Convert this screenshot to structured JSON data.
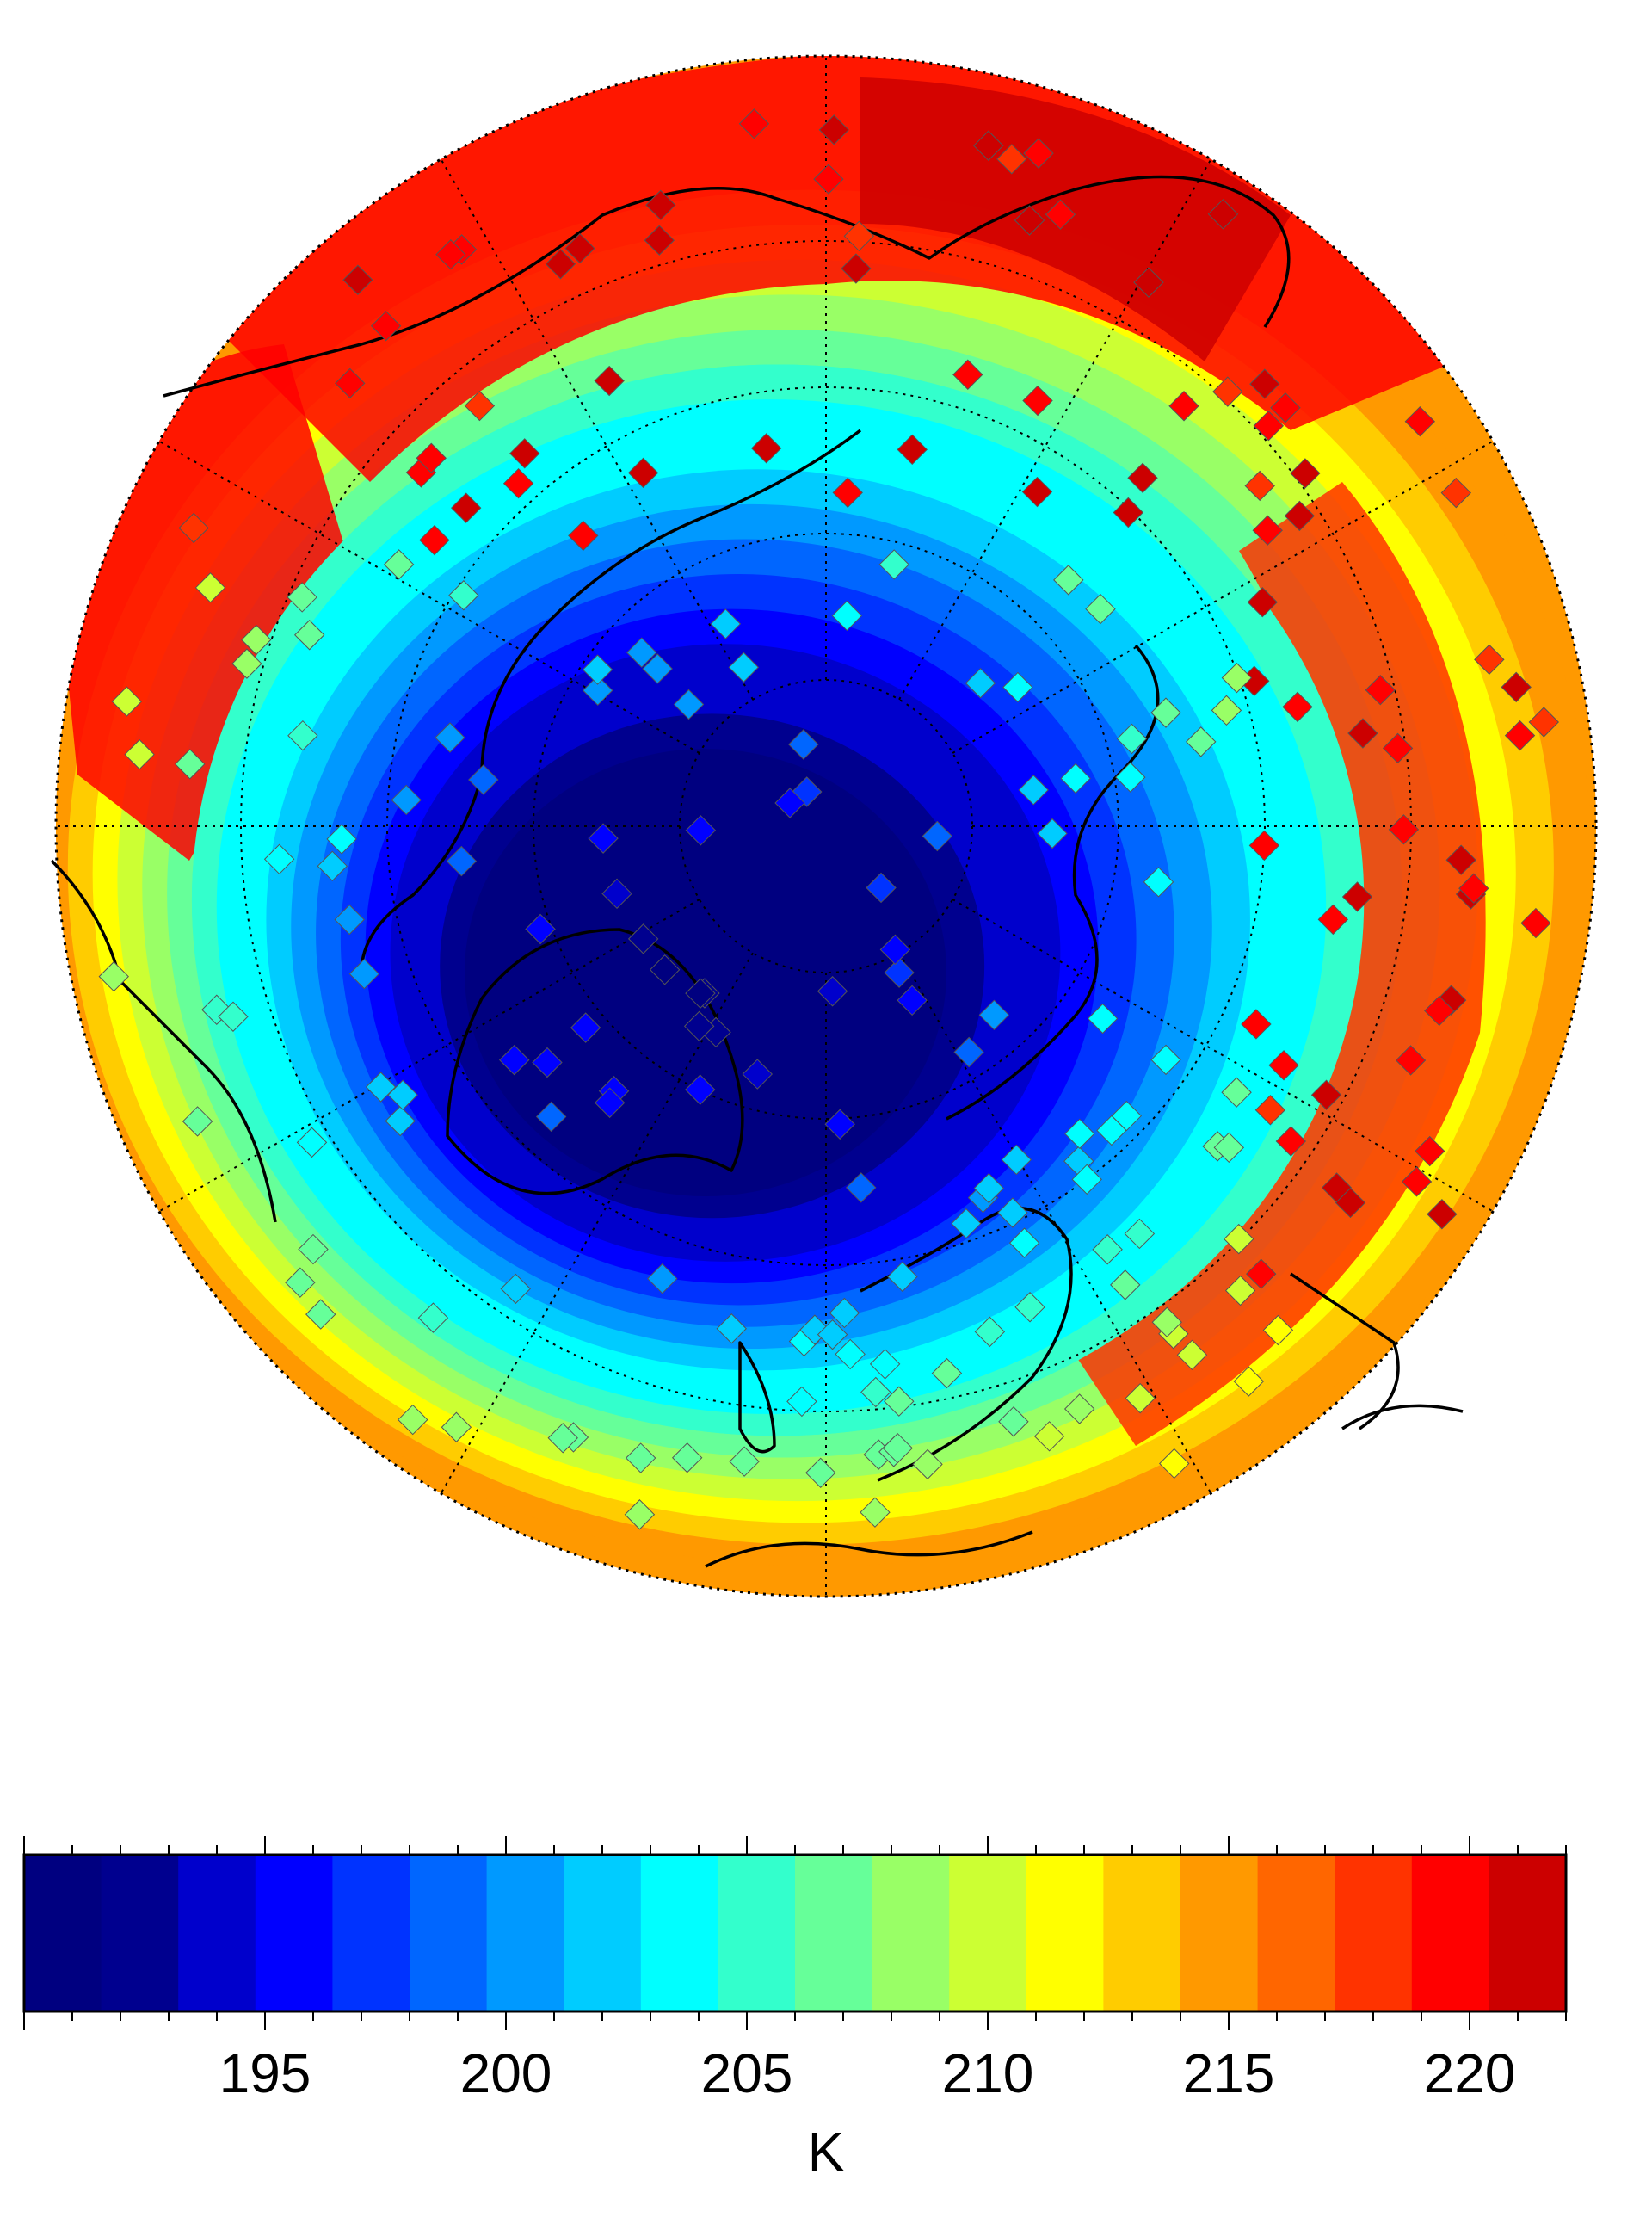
{
  "map": {
    "projection": "north-polar-stereographic",
    "field": "temperature",
    "center_value_K": 190.5,
    "edge_value_K": 214,
    "warm_pool_value_K": 221.5
  },
  "colorbar": {
    "unit": "K",
    "min": 190,
    "max": 222,
    "tick_labels": [
      "195",
      "200",
      "205",
      "210",
      "215",
      "220"
    ],
    "tick_values": [
      195,
      200,
      205,
      210,
      215,
      220
    ],
    "colors": [
      "#000080",
      "#00008f",
      "#0000cc",
      "#0000ff",
      "#0033ff",
      "#0066ff",
      "#0099ff",
      "#00ccff",
      "#00ffff",
      "#33ffcc",
      "#66ff99",
      "#99ff66",
      "#ccff33",
      "#ffff00",
      "#ffcc00",
      "#ff9900",
      "#ff6600",
      "#ff3300",
      "#ff0000",
      "#cc0000"
    ]
  }
}
